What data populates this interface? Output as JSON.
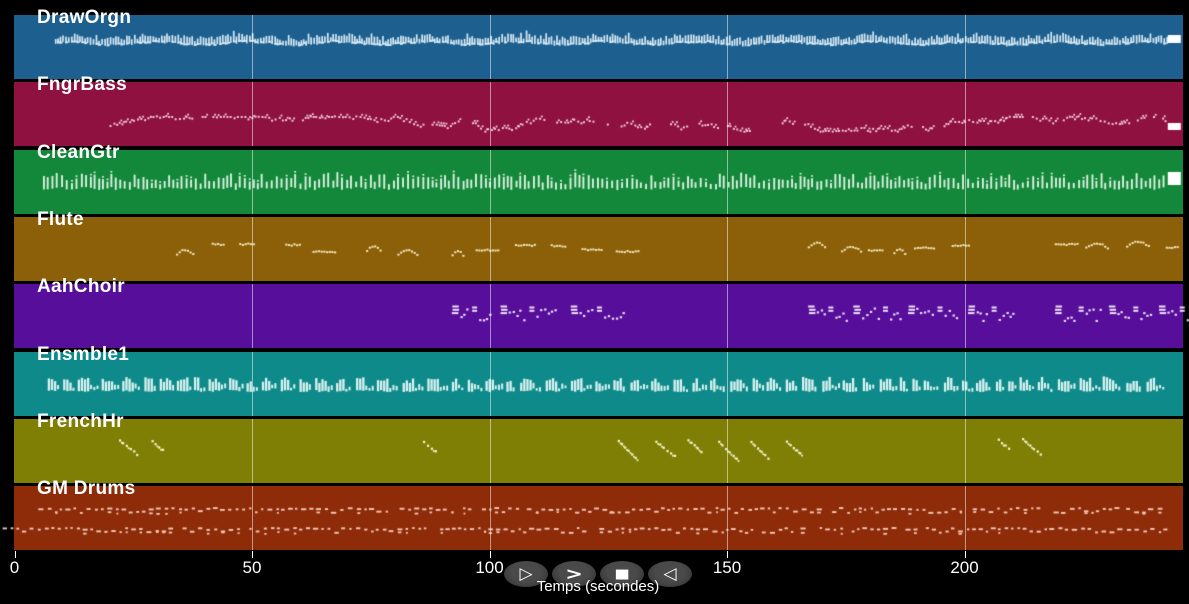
{
  "timeline": {
    "axis_title": "Temps (secondes)",
    "ticks": [
      "0",
      "50",
      "100",
      "150",
      "200"
    ],
    "tick_seconds": [
      0,
      50,
      100,
      150,
      200
    ],
    "duration_seconds": 246
  },
  "transport": {
    "buttons": [
      {
        "name": "play",
        "symbol": "▷"
      },
      {
        "name": "fast-forward",
        "symbol": ">"
      },
      {
        "name": "stop",
        "symbol": "■"
      },
      {
        "name": "rewind",
        "symbol": "◁"
      }
    ]
  },
  "colors": {
    "background": "#000000",
    "gridline": "rgba(255,255,255,0.5)",
    "tick": "#ffffff",
    "text": "#ffffff",
    "button_background": "#3c3c3c",
    "end_marker": "#ffffff"
  },
  "tracks": [
    {
      "label": "DrawOrgn",
      "color": "#1d5f8e",
      "note_color": "#d6e9f4",
      "style": "wave",
      "note_band": [
        16,
        30
      ],
      "segments": [
        [
          8.5,
          242.5
        ]
      ],
      "end_marker": {
        "t": 242.8,
        "y": 20,
        "h": 8
      }
    },
    {
      "label": "FngrBass",
      "color": "#8e1140",
      "note_color": "#f3c8da",
      "style": "zigzag",
      "note_band": [
        33,
        51
      ],
      "segments": [
        [
          20,
          134
        ],
        [
          138,
          141.5
        ],
        [
          144,
          148
        ],
        [
          150,
          155
        ],
        [
          161.5,
          242.5
        ]
      ],
      "end_marker": {
        "t": 242.8,
        "y": 41,
        "h": 7
      }
    },
    {
      "label": "CleanGtr",
      "color": "#13883a",
      "note_color": "#daf0df",
      "style": "ticks",
      "note_band": [
        17,
        40
      ],
      "segments": [
        [
          6,
          242.5
        ]
      ],
      "end_marker": {
        "t": 242.8,
        "y": 22,
        "h": 13
      }
    },
    {
      "label": "Flute",
      "color": "#8c6008",
      "note_color": "#f5e8bf",
      "style": "arcs",
      "note_band": [
        20,
        40
      ],
      "segments": [
        [
          34,
          52
        ],
        [
          57,
          68
        ],
        [
          74,
          88
        ],
        [
          92,
          127
        ],
        [
          167,
          203
        ],
        [
          219,
          243.5
        ]
      ],
      "end_marker": null
    },
    {
      "label": "AahChoir",
      "color": "#570e9a",
      "note_color": "#eee2f8",
      "style": "chords",
      "note_band": [
        20,
        40
      ],
      "segments": [
        [
          92,
          127
        ],
        [
          167,
          203
        ],
        [
          219,
          243.5
        ]
      ],
      "end_marker": null
    },
    {
      "label": "Ensmble1",
      "color": "#0f8a8a",
      "note_color": "#d9f2f0",
      "style": "blocks",
      "note_band": [
        15,
        40
      ],
      "segments": [
        [
          7,
          239
        ]
      ],
      "end_marker": null
    },
    {
      "label": "FrenchHr",
      "color": "#7f7f05",
      "note_color": "#f4f4cf",
      "style": "steps",
      "note_band": [
        18,
        40
      ],
      "segments": [
        [
          22,
          33
        ],
        [
          86,
          92
        ],
        [
          127,
          168
        ],
        [
          207,
          220
        ]
      ],
      "end_marker": null
    },
    {
      "label": "GM Drums",
      "color": "#8e2c0a",
      "note_color": "#f2c9b4",
      "style": "drums",
      "note_band": [
        21,
        50
      ],
      "segments": [],
      "rows": [
        {
          "band": [
            21,
            30
          ],
          "segments": [
            [
              5,
              242
            ]
          ]
        },
        {
          "band": [
            41,
            50
          ],
          "segments": [
            [
              -2.5,
              242
            ]
          ]
        }
      ],
      "end_marker": null
    }
  ]
}
